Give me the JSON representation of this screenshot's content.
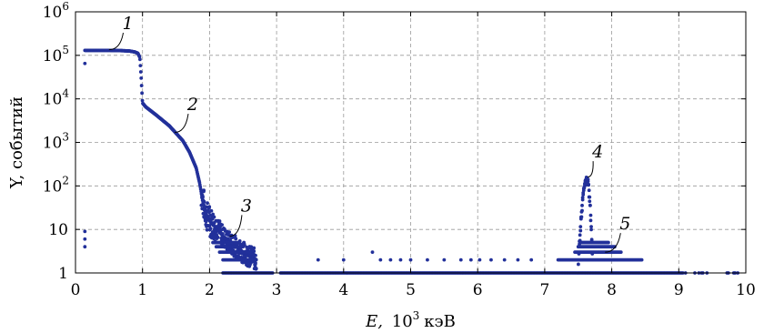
{
  "chart_data": {
    "type": "scatter",
    "x_unit_label": "10",
    "x_unit_sup": "3",
    "xlabel_prefix": "E,",
    "xlabel_suffix": "кэВ",
    "ylabel": "Y, событий",
    "xlim": [
      0,
      10
    ],
    "ylim": [
      1,
      1000000
    ],
    "yscale": "log",
    "grid": true,
    "x_ticks": [
      "0",
      "1",
      "2",
      "3",
      "4",
      "5",
      "6",
      "7",
      "8",
      "9",
      "10"
    ],
    "y_ticks": [
      {
        "value": 1,
        "label": "1"
      },
      {
        "value": 10,
        "label": "10"
      },
      {
        "value": 100,
        "base": "10",
        "exp": "2"
      },
      {
        "value": 1000,
        "base": "10",
        "exp": "3"
      },
      {
        "value": 10000,
        "base": "10",
        "exp": "4"
      },
      {
        "value": 100000,
        "base": "10",
        "exp": "5"
      },
      {
        "value": 1000000,
        "base": "10",
        "exp": "6"
      }
    ],
    "series_color": "#22309a",
    "curve_main": [
      [
        0.14,
        130000
      ],
      [
        0.3,
        130000
      ],
      [
        0.5,
        130000
      ],
      [
        0.7,
        128000
      ],
      [
        0.8,
        126000
      ],
      [
        0.88,
        120000
      ],
      [
        0.93,
        112000
      ],
      [
        0.96,
        90000
      ],
      [
        0.98,
        30000
      ],
      [
        1.0,
        8000
      ],
      [
        1.05,
        6500
      ],
      [
        1.2,
        4300
      ],
      [
        1.4,
        2400
      ],
      [
        1.6,
        1100
      ],
      [
        1.7,
        600
      ],
      [
        1.8,
        260
      ],
      [
        1.85,
        120
      ],
      [
        1.9,
        45
      ],
      [
        1.95,
        22
      ],
      [
        2.0,
        16
      ],
      [
        2.05,
        13
      ],
      [
        2.1,
        11
      ],
      [
        2.15,
        9
      ],
      [
        2.2,
        7
      ],
      [
        2.3,
        5
      ],
      [
        2.4,
        4
      ],
      [
        2.5,
        3
      ],
      [
        2.6,
        2.4
      ],
      [
        2.7,
        2
      ]
    ],
    "isolated_points": [
      [
        0.14,
        65000
      ],
      [
        0.14,
        9
      ],
      [
        0.14,
        6
      ],
      [
        0.14,
        4
      ],
      [
        3.62,
        2
      ],
      [
        4.0,
        2
      ],
      [
        4.43,
        3
      ],
      [
        4.55,
        2
      ],
      [
        4.7,
        2
      ],
      [
        4.85,
        2
      ],
      [
        5.0,
        2
      ],
      [
        5.25,
        2
      ],
      [
        5.5,
        2
      ],
      [
        5.75,
        2
      ],
      [
        5.9,
        2
      ],
      [
        6.03,
        2
      ],
      [
        6.2,
        2
      ],
      [
        6.4,
        2
      ],
      [
        6.6,
        2
      ],
      [
        6.8,
        2
      ]
    ],
    "peak_4": {
      "center": 7.63,
      "max": 150
    },
    "series_5": {
      "x_start": 7.2,
      "x_end": 8.45
    },
    "annotations": [
      {
        "label": "1",
        "x": 0.78,
        "y": 400000,
        "tip_x": 0.5,
        "tip_y": 135000
      },
      {
        "label": "2",
        "x": 1.75,
        "y": 5500,
        "tip_x": 1.48,
        "tip_y": 1700
      },
      {
        "label": "3",
        "x": 2.55,
        "y": 26,
        "tip_x": 2.3,
        "tip_y": 7
      },
      {
        "label": "4",
        "x": 7.79,
        "y": 450,
        "tip_x": 7.64,
        "tip_y": 160
      },
      {
        "label": "5",
        "x": 8.2,
        "y": 10,
        "tip_x": 7.9,
        "tip_y": 3
      }
    ]
  }
}
